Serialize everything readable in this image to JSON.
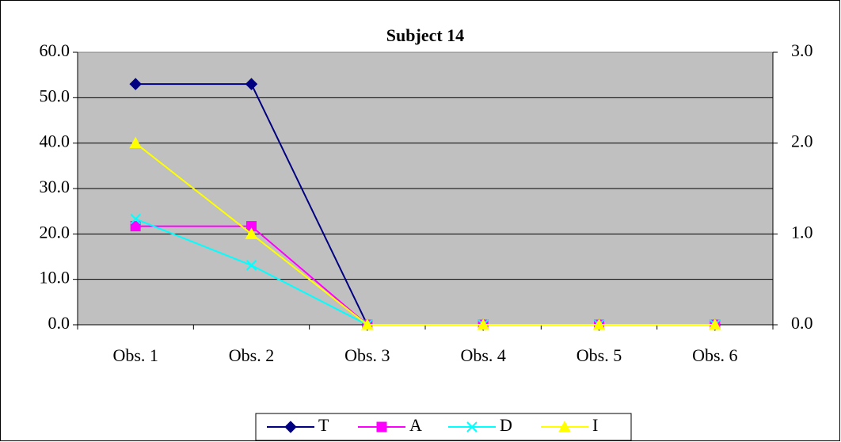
{
  "chart_data": {
    "type": "line",
    "title": "Subject 14",
    "categories": [
      "Obs. 1",
      "Obs. 2",
      "Obs. 3",
      "Obs. 4",
      "Obs. 5",
      "Obs. 6"
    ],
    "series": [
      {
        "name": "T",
        "color": "#000080",
        "marker": "diamond",
        "values": [
          53,
          53,
          0,
          0,
          0,
          0
        ]
      },
      {
        "name": "A",
        "color": "#ff00ff",
        "marker": "square",
        "values": [
          21.7,
          21.7,
          0,
          0,
          0,
          0
        ]
      },
      {
        "name": "D",
        "color": "#00ffff",
        "marker": "x",
        "values": [
          23.3,
          13.1,
          0,
          0,
          0,
          0
        ]
      },
      {
        "name": "I",
        "color": "#ffff00",
        "marker": "triangle",
        "axis": "y2",
        "values": [
          2.0,
          1.0,
          0,
          0,
          0,
          0
        ]
      }
    ],
    "ylim": [
      0,
      60
    ],
    "yticks": [
      {
        "value": 0,
        "label": "0.0"
      },
      {
        "value": 10,
        "label": "10.0"
      },
      {
        "value": 20,
        "label": "20.0"
      },
      {
        "value": 30,
        "label": "30.0"
      },
      {
        "value": 40,
        "label": "40.0"
      },
      {
        "value": 50,
        "label": "50.0"
      },
      {
        "value": 60,
        "label": "60.0"
      }
    ],
    "y2lim": [
      0,
      3
    ],
    "y2ticks": [
      {
        "value": 0,
        "label": "0.0"
      },
      {
        "value": 1,
        "label": "1.0"
      },
      {
        "value": 2,
        "label": "2.0"
      },
      {
        "value": 3,
        "label": "3.0"
      }
    ],
    "grid": true,
    "legend": "bottom"
  }
}
